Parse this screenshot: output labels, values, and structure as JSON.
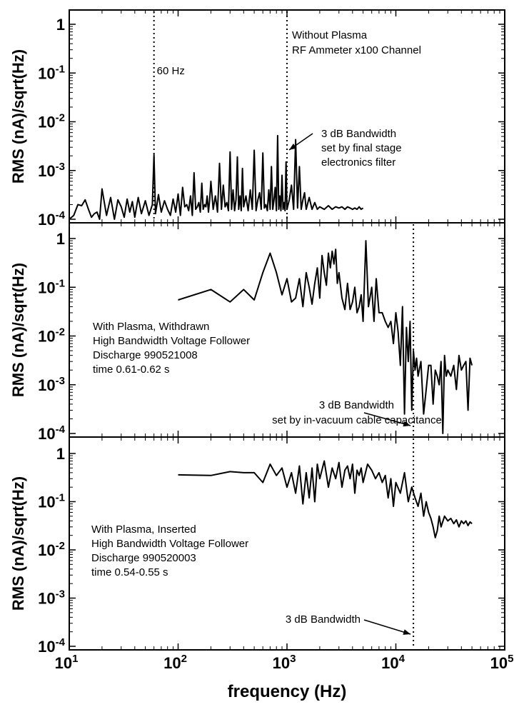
{
  "chart_data": {
    "type": "line",
    "x_scale": "log",
    "y_scale": "log",
    "xlabel": "frequency (Hz)",
    "xlim": [
      10,
      100000
    ],
    "x_ticks": [
      {
        "value": 10,
        "base": "10",
        "exp": "1"
      },
      {
        "value": 100,
        "base": "10",
        "exp": "2"
      },
      {
        "value": 1000,
        "base": "10",
        "exp": "3"
      },
      {
        "value": 10000,
        "base": "10",
        "exp": "4"
      },
      {
        "value": 100000,
        "base": "10",
        "exp": "5"
      }
    ],
    "y_ticks": [
      {
        "value": 1,
        "base": "1",
        "exp": ""
      },
      {
        "value": 0.1,
        "base": "10",
        "exp": "-1"
      },
      {
        "value": 0.01,
        "base": "10",
        "exp": "-2"
      },
      {
        "value": 0.001,
        "base": "10",
        "exp": "-3"
      },
      {
        "value": 0.0001,
        "base": "10",
        "exp": "-4"
      }
    ],
    "grid": false,
    "panels": [
      {
        "ylabel": "RMS (nA)/sqrt(Hz)",
        "ylim": [
          0.0001,
          2
        ],
        "vlines": [
          60,
          1000
        ],
        "annotations": {
          "line60": "60 Hz",
          "title1": "Without Plasma",
          "title2": "RF Ammeter x100 Channel",
          "arrow1": "3 dB Bandwidth",
          "arrow2": "set by final stage",
          "arrow3": "electronics filter"
        },
        "series": [
          {
            "x": [
              10,
              11,
              12,
              13,
              14,
              15,
              16,
              17,
              18,
              19,
              20,
              22,
              24,
              26,
              28,
              30,
              32,
              34,
              36,
              38,
              40,
              43,
              46,
              50,
              54,
              58,
              60,
              62,
              66,
              70,
              75,
              80,
              85,
              90,
              95,
              100,
              105,
              110,
              115,
              120,
              125,
              130,
              135,
              140,
              145,
              150,
              155,
              160,
              165,
              170,
              175,
              180,
              185,
              190,
              195,
              200,
              210,
              220,
              230,
              240,
              250,
              260,
              270,
              280,
              290,
              300,
              310,
              320,
              330,
              340,
              350,
              360,
              370,
              380,
              390,
              400,
              420,
              440,
              460,
              480,
              500,
              520,
              540,
              560,
              580,
              600,
              620,
              640,
              660,
              680,
              700,
              720,
              740,
              760,
              780,
              800,
              820,
              840,
              860,
              880,
              900,
              920,
              940,
              960,
              980,
              1000,
              1050,
              1100,
              1150,
              1200,
              1250,
              1300,
              1350,
              1400,
              1450,
              1500,
              1600,
              1700,
              1800,
              1900,
              2000,
              2200,
              2400,
              2600,
              2800,
              3000,
              3200,
              3400,
              3600,
              3800,
              4000,
              4200,
              4400,
              4600,
              4800,
              5000
            ],
            "y": [
              0.0001,
              0.00012,
              0.0002,
              0.00019,
              0.00025,
              0.00016,
              0.00011,
              0.00013,
              0.00014,
              0.0001,
              0.00042,
              0.00012,
              0.00028,
              0.0001,
              0.00025,
              0.00018,
              0.00011,
              0.00026,
              0.00014,
              0.00023,
              0.00011,
              0.00028,
              0.00013,
              0.00024,
              0.00012,
              0.0002,
              0.0021,
              0.00013,
              0.00032,
              0.00014,
              0.00024,
              0.00016,
              0.00012,
              0.00026,
              0.00014,
              0.00033,
              0.00012,
              0.00045,
              0.00018,
              0.0002,
              0.00015,
              0.0003,
              0.00012,
              0.0009,
              0.00016,
              0.00018,
              0.00022,
              0.00014,
              0.00055,
              0.00016,
              0.0002,
              0.00018,
              0.0003,
              0.00014,
              0.00025,
              0.0006,
              0.00016,
              0.0003,
              0.00014,
              0.0014,
              0.00016,
              0.0005,
              0.00018,
              0.00022,
              0.00015,
              0.0024,
              0.00016,
              0.0004,
              0.00015,
              0.00025,
              0.0019,
              0.00016,
              0.0003,
              0.00015,
              0.0011,
              0.00018,
              0.0003,
              0.00015,
              0.0004,
              0.00016,
              0.0026,
              0.00015,
              0.00025,
              0.00035,
              0.00016,
              0.0023,
              0.00017,
              0.0002,
              0.00015,
              0.0004,
              0.00016,
              0.0012,
              0.00016,
              0.00025,
              0.00045,
              0.00015,
              0.0052,
              0.00016,
              0.0003,
              0.00015,
              0.0008,
              0.00016,
              0.00022,
              0.00015,
              0.0015,
              0.00016,
              0.00025,
              0.0005,
              0.00016,
              0.0043,
              0.00017,
              0.0012,
              0.00016,
              0.00025,
              0.00035,
              0.00016,
              0.00028,
              0.00016,
              0.00022,
              0.00016,
              0.00018,
              0.00016,
              0.00019,
              0.00016,
              0.00018,
              0.00017,
              0.00018,
              0.00016,
              0.00018,
              0.00017,
              0.00016,
              0.00017,
              0.00016,
              0.00018,
              0.00016,
              0.00017
            ]
          }
        ]
      },
      {
        "ylabel": "RMS (nA)/sqrt(Hz)",
        "ylim": [
          0.0001,
          2
        ],
        "vlines": [
          14500
        ],
        "annotations": {
          "text1": "With Plasma, Withdrawn",
          "text2": "High Bandwidth Voltage Follower",
          "text3": "Discharge 990521008",
          "text4": "time 0.61-0.62 s",
          "arrow1": "3 dB Bandwidth",
          "arrow2": "set by in-vacuum cable capacitance"
        },
        "series": [
          {
            "x": [
              100,
              200,
              300,
              400,
              500,
              600,
              700,
              800,
              900,
              1000,
              1100,
              1200,
              1300,
              1400,
              1500,
              1600,
              1700,
              1800,
              1900,
              2000,
              2100,
              2200,
              2300,
              2400,
              2500,
              2600,
              2700,
              2800,
              2900,
              3000,
              3200,
              3400,
              3600,
              3800,
              4000,
              4200,
              4400,
              4600,
              4800,
              5000,
              5300,
              5600,
              6000,
              6300,
              6600,
              7000,
              7500,
              8000,
              8500,
              9000,
              9500,
              10000,
              10500,
              11000,
              11500,
              12000,
              12500,
              13000,
              13500,
              14000,
              14500,
              15000,
              15500,
              16000,
              17000,
              18000,
              19000,
              20000,
              21000,
              22000,
              23000,
              24000,
              25000,
              26000,
              27000,
              28000,
              29000,
              30000,
              32000,
              34000,
              36000,
              38000,
              40000,
              42000,
              44000,
              46000,
              48000,
              50000
            ],
            "y": [
              0.055,
              0.09,
              0.05,
              0.09,
              0.055,
              0.2,
              0.5,
              0.2,
              0.07,
              0.15,
              0.05,
              0.06,
              0.15,
              0.04,
              0.2,
              0.1,
              0.045,
              0.12,
              0.25,
              0.06,
              0.45,
              0.2,
              0.11,
              0.5,
              0.25,
              0.55,
              0.3,
              0.6,
              0.12,
              0.2,
              0.06,
              0.035,
              0.12,
              0.035,
              0.05,
              0.1,
              0.03,
              0.04,
              0.07,
              0.02,
              0.9,
              0.04,
              0.1,
              0.02,
              0.15,
              0.03,
              0.03,
              0.02,
              0.015,
              0.02,
              0.007,
              0.03,
              0.012,
              0.0025,
              0.04,
              0.00025,
              0.015,
              0.003,
              0.02,
              0.0003,
              0.005,
              0.002,
              0.0035,
              0.0015,
              0.003,
              0.00025,
              0.0008,
              0.0025,
              0.0025,
              0.0004,
              0.002,
              0.0015,
              0.001,
              0.003,
              0.0001,
              0.004,
              0.0015,
              0.002,
              0.0015,
              0.0025,
              0.0008,
              0.004,
              0.002,
              0.0025,
              0.003,
              0.0003,
              0.0035,
              0.0025
            ]
          }
        ]
      },
      {
        "ylabel": "RMS (nA)/sqrt(Hz)",
        "ylim": [
          0.0001,
          2
        ],
        "vlines": [
          14500
        ],
        "annotations": {
          "text1": "With Plasma, Inserted",
          "text2": "High Bandwidth Voltage Follower",
          "text3": "Discharge 990520003",
          "text4": "time 0.54-0.55 s",
          "arrow1": "3 dB Bandwidth"
        },
        "series": [
          {
            "x": [
              100,
              200,
              300,
              400,
              500,
              600,
              700,
              800,
              900,
              1000,
              1100,
              1200,
              1300,
              1400,
              1500,
              1600,
              1700,
              1800,
              1900,
              2000,
              2200,
              2400,
              2600,
              2800,
              3000,
              3200,
              3400,
              3600,
              3800,
              4000,
              4200,
              4400,
              4600,
              4800,
              5000,
              5500,
              6000,
              6500,
              7000,
              7500,
              8000,
              8500,
              9000,
              9500,
              10000,
              11000,
              12000,
              13000,
              14000,
              15000,
              16000,
              17000,
              18000,
              19000,
              20000,
              21000,
              22000,
              23000,
              24000,
              25000,
              26000,
              28000,
              30000,
              32000,
              34000,
              36000,
              38000,
              40000,
              42000,
              44000,
              46000,
              48000,
              50000
            ],
            "y": [
              0.36,
              0.35,
              0.42,
              0.4,
              0.4,
              0.25,
              0.6,
              0.35,
              0.5,
              0.2,
              0.4,
              0.15,
              0.55,
              0.09,
              0.4,
              0.12,
              0.5,
              0.1,
              0.6,
              0.3,
              0.7,
              0.2,
              0.5,
              0.3,
              0.65,
              0.2,
              0.45,
              0.55,
              0.3,
              0.6,
              0.15,
              0.45,
              0.35,
              0.5,
              0.25,
              0.6,
              0.45,
              0.3,
              0.4,
              0.25,
              0.35,
              0.12,
              0.3,
              0.08,
              0.25,
              0.15,
              0.4,
              0.1,
              0.2,
              0.12,
              0.08,
              0.15,
              0.05,
              0.1,
              0.06,
              0.045,
              0.03,
              0.018,
              0.025,
              0.05,
              0.03,
              0.05,
              0.04,
              0.045,
              0.035,
              0.042,
              0.03,
              0.04,
              0.035,
              0.04,
              0.032,
              0.038,
              0.035
            ]
          }
        ]
      }
    ]
  }
}
